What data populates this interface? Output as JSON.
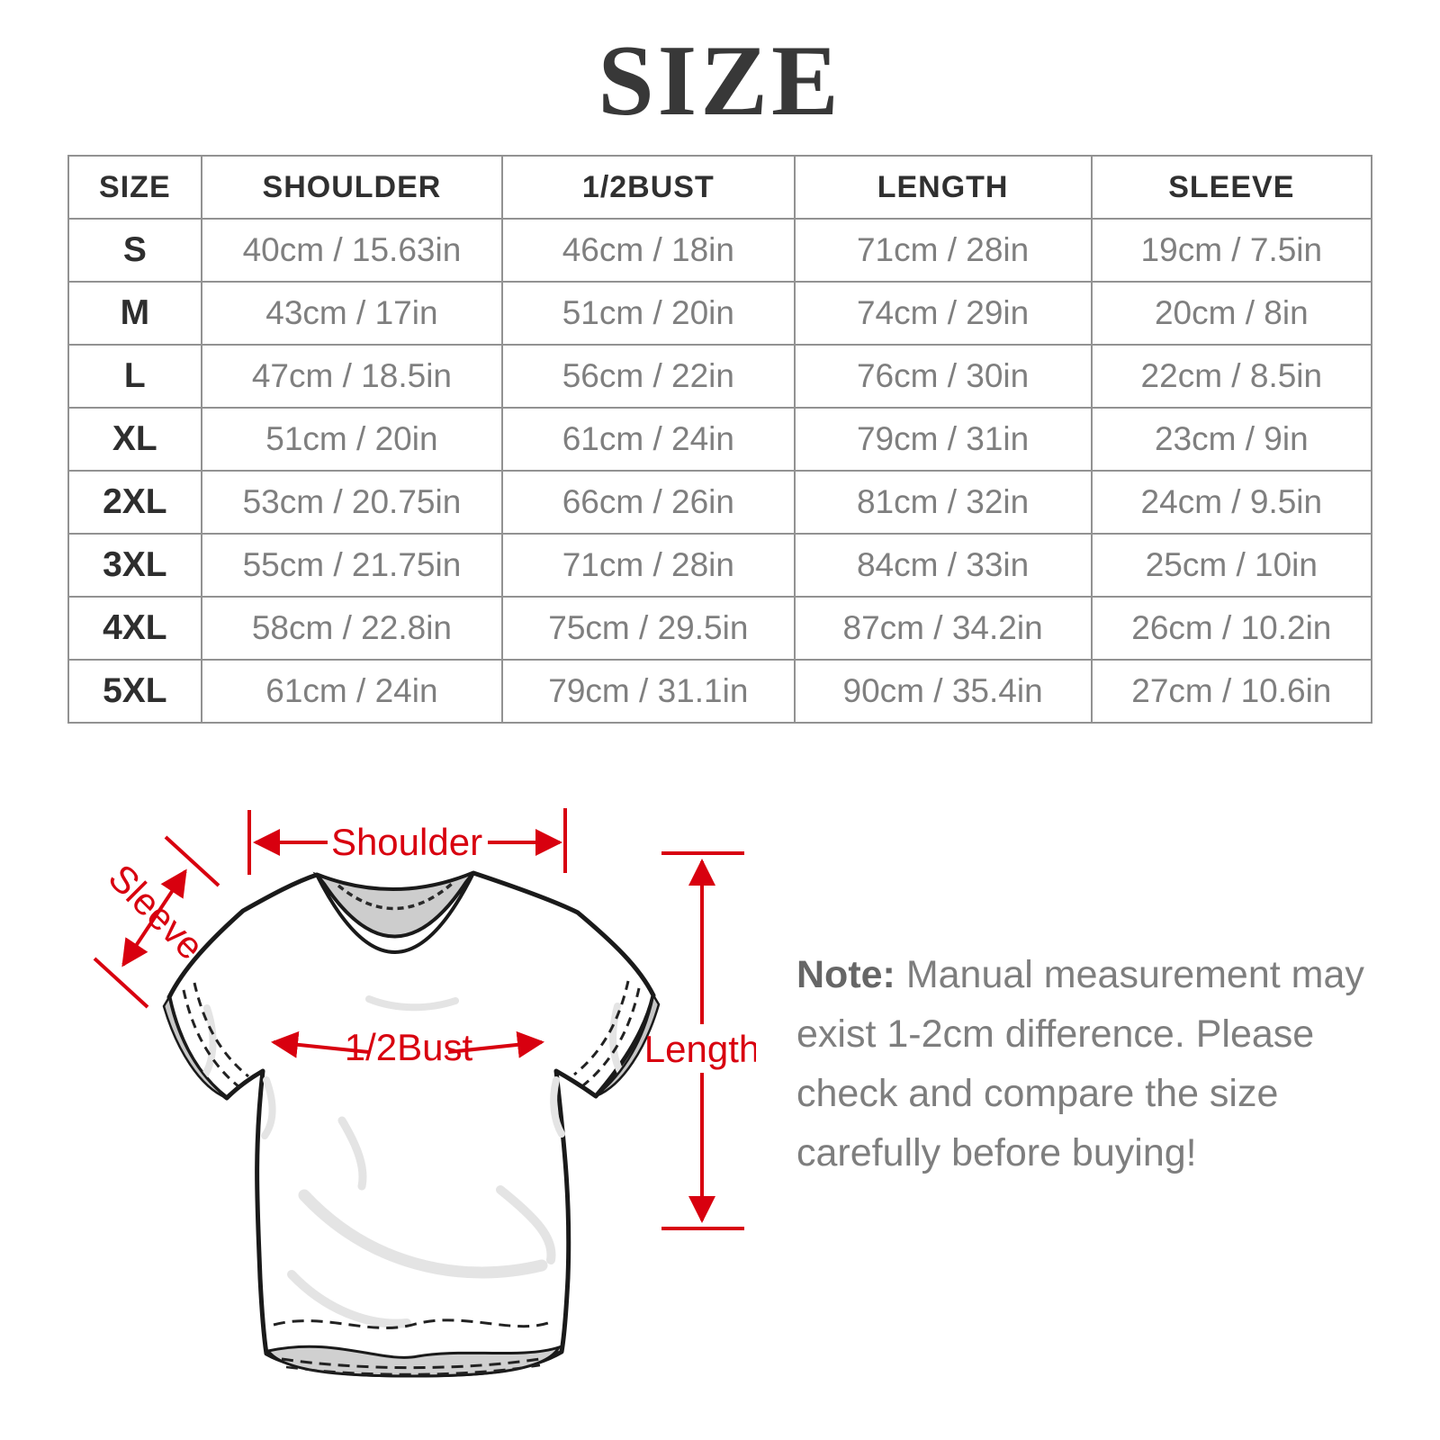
{
  "title": "SIZE",
  "colors": {
    "accent_red": "#d8000f",
    "table_border": "#929292",
    "cell_text": "#7f7f7f",
    "header_text": "#303030",
    "note_text": "#7e7e7e"
  },
  "table": {
    "columns": [
      "SIZE",
      "SHOULDER",
      "1/2BUST",
      "LENGTH",
      "SLEEVE"
    ],
    "rows": [
      {
        "size": "S",
        "shoulder": "40cm / 15.63in",
        "half_bust": "46cm / 18in",
        "length": "71cm / 28in",
        "sleeve": "19cm / 7.5in"
      },
      {
        "size": "M",
        "shoulder": "43cm / 17in",
        "half_bust": "51cm / 20in",
        "length": "74cm / 29in",
        "sleeve": "20cm / 8in"
      },
      {
        "size": "L",
        "shoulder": "47cm / 18.5in",
        "half_bust": "56cm / 22in",
        "length": "76cm / 30in",
        "sleeve": "22cm / 8.5in"
      },
      {
        "size": "XL",
        "shoulder": "51cm / 20in",
        "half_bust": "61cm / 24in",
        "length": "79cm / 31in",
        "sleeve": "23cm / 9in"
      },
      {
        "size": "2XL",
        "shoulder": "53cm / 20.75in",
        "half_bust": "66cm / 26in",
        "length": "81cm / 32in",
        "sleeve": "24cm / 9.5in"
      },
      {
        "size": "3XL",
        "shoulder": "55cm / 21.75in",
        "half_bust": "71cm / 28in",
        "length": "84cm / 33in",
        "sleeve": "25cm / 10in"
      },
      {
        "size": "4XL",
        "shoulder": "58cm / 22.8in",
        "half_bust": "75cm / 29.5in",
        "length": "87cm / 34.2in",
        "sleeve": "26cm / 10.2in"
      },
      {
        "size": "5XL",
        "shoulder": "61cm / 24in",
        "half_bust": "79cm / 31.1in",
        "length": "90cm / 35.4in",
        "sleeve": "27cm / 10.6in"
      }
    ]
  },
  "diagram": {
    "labels": {
      "shoulder": "Shoulder",
      "sleeve": "Sleeve",
      "half_bust": "1/2Bust",
      "length": "Length"
    }
  },
  "note": {
    "prefix": "Note:",
    "lines": [
      "Manual measurement may",
      "exist 1-2cm difference. Please",
      "check and compare the size",
      "carefully before buying!"
    ]
  }
}
